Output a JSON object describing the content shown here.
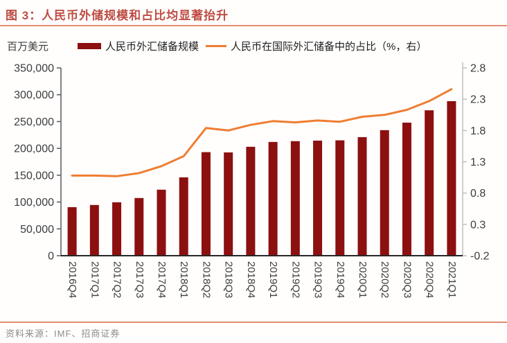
{
  "header": {
    "title": "图 3：人民币外储规模和占比均显著抬升"
  },
  "unit_label": "百万美元",
  "legend": {
    "bar_label": "人民币外汇储备规模",
    "line_label": "人民币在国际外汇储备中的占比（%，右）"
  },
  "footer": {
    "source": "资料来源：IMF、招商证券"
  },
  "colors": {
    "bar": "#8c1010",
    "line": "#ef7d31",
    "title": "#be4c43",
    "rule": "#e28d72",
    "axis_text": "#3c3c3c",
    "left_axis_line": "#595959",
    "right_axis_line": "#bfbfbf",
    "bottom_axis_line": "#262626"
  },
  "chart_data": {
    "type": "bar",
    "title": "人民币外储规模和占比均显著抬升",
    "categories": [
      "2016Q4",
      "2017Q1",
      "2017Q2",
      "2017Q3",
      "2017Q4",
      "2018Q1",
      "2018Q2",
      "2018Q3",
      "2018Q4",
      "2019Q1",
      "2019Q2",
      "2019Q3",
      "2019Q4",
      "2020Q1",
      "2020Q2",
      "2020Q3",
      "2020Q4",
      "2021Q1"
    ],
    "series": [
      {
        "name": "人民币外汇储备规模",
        "type": "bar",
        "axis": "left",
        "color": "#8c1010",
        "values": [
          90500,
          94500,
          99500,
          107500,
          123000,
          146000,
          193000,
          192500,
          203000,
          212000,
          213500,
          214500,
          215000,
          221000,
          234000,
          248000,
          271000,
          288000
        ]
      },
      {
        "name": "人民币在国际外汇储备中的占比（%，右）",
        "type": "line",
        "axis": "right",
        "color": "#ef7d31",
        "values": [
          1.08,
          1.08,
          1.07,
          1.12,
          1.23,
          1.39,
          1.84,
          1.8,
          1.89,
          1.95,
          1.93,
          1.96,
          1.94,
          2.02,
          2.05,
          2.13,
          2.27,
          2.46
        ]
      }
    ],
    "left_axis": {
      "label": "百万美元",
      "min": 0,
      "max": 350000,
      "step": 50000,
      "tick_labels": [
        "350,000",
        "300,000",
        "250,000",
        "200,000",
        "150,000",
        "100,000",
        "50,000",
        "0"
      ]
    },
    "right_axis": {
      "label": "%",
      "min": -0.2,
      "max": 2.8,
      "step": 0.5,
      "tick_labels": [
        "2.8",
        "2.3",
        "1.8",
        "1.3",
        "0.8",
        "0.3",
        "-0.2"
      ]
    },
    "grid": false,
    "legend_position": "top"
  }
}
